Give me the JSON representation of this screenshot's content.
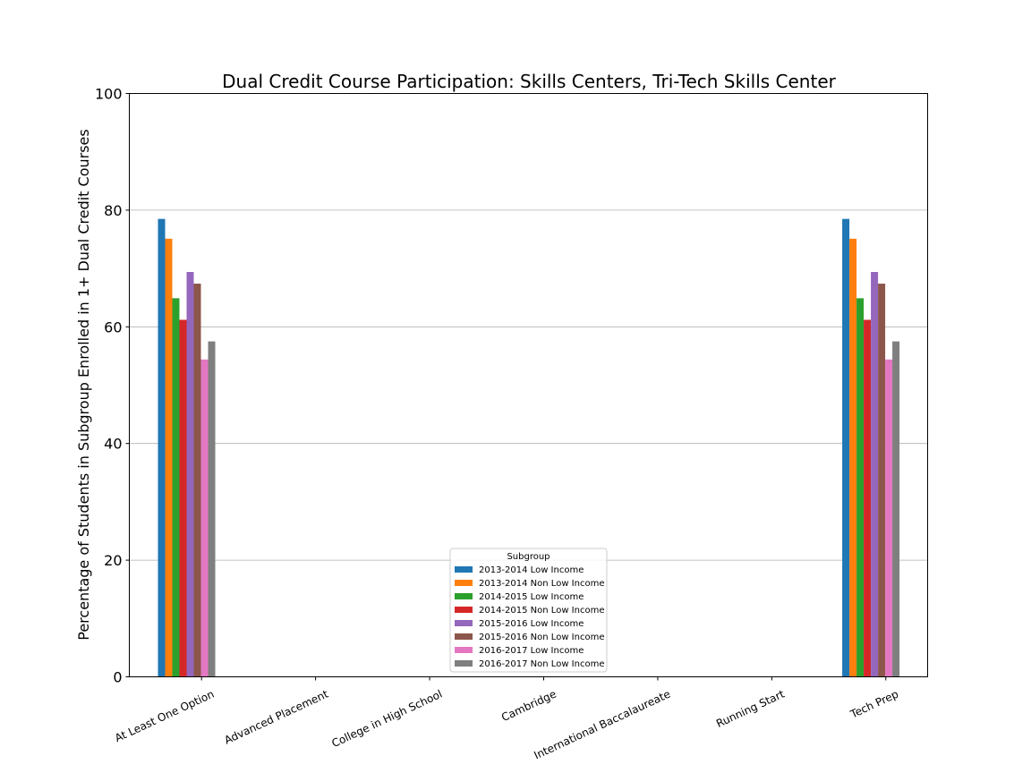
{
  "chart_data": {
    "type": "bar",
    "title": "Dual Credit Course Participation: Skills Centers, Tri-Tech Skills Center",
    "xlabel": "",
    "ylabel": "Percentage of Students in Subgroup Enrolled in 1+ Dual Credit Courses",
    "ylim": [
      0,
      100
    ],
    "yticks": [
      0,
      20,
      40,
      60,
      80,
      100
    ],
    "grid": "y",
    "categories": [
      "At Least One Option",
      "Advanced Placement",
      "College in High School",
      "Cambridge",
      "International Baccalaureate",
      "Running Start",
      "Tech Prep"
    ],
    "legend": {
      "title": "Subgroup",
      "placement": "lower center"
    },
    "series": [
      {
        "name": "2013-2014 Low Income",
        "color": "#1f77b4",
        "values": [
          78.5,
          0,
          0,
          0,
          0,
          0,
          78.5
        ]
      },
      {
        "name": "2013-2014 Non Low Income",
        "color": "#ff7f0e",
        "values": [
          75.1,
          0,
          0,
          0,
          0,
          0,
          75.1
        ]
      },
      {
        "name": "2014-2015 Low Income",
        "color": "#2ca02c",
        "values": [
          64.9,
          0,
          0,
          0,
          0,
          0,
          64.9
        ]
      },
      {
        "name": "2014-2015 Non Low Income",
        "color": "#d62728",
        "values": [
          61.2,
          0,
          0,
          0,
          0,
          0,
          61.2
        ]
      },
      {
        "name": "2015-2016 Low Income",
        "color": "#9467bd",
        "values": [
          69.4,
          0,
          0,
          0,
          0,
          0,
          69.4
        ]
      },
      {
        "name": "2015-2016 Non Low Income",
        "color": "#8c564b",
        "values": [
          67.4,
          0,
          0,
          0,
          0,
          0,
          67.4
        ]
      },
      {
        "name": "2016-2017 Low Income",
        "color": "#e377c2",
        "values": [
          54.4,
          0,
          0,
          0,
          0,
          0,
          54.4
        ]
      },
      {
        "name": "2016-2017 Non Low Income",
        "color": "#7f7f7f",
        "values": [
          57.5,
          0,
          0,
          0,
          0,
          0,
          57.5
        ]
      }
    ]
  }
}
